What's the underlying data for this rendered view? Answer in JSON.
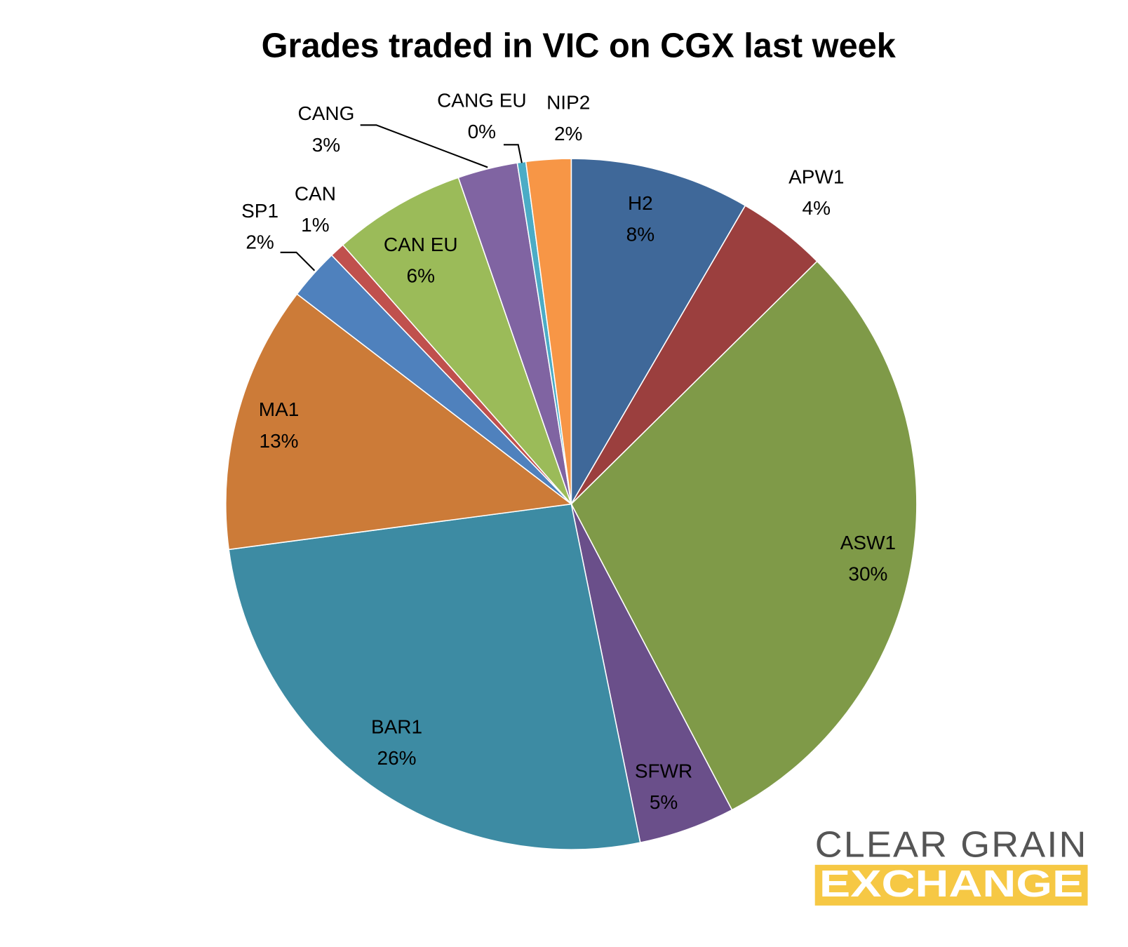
{
  "chart_data": {
    "type": "pie",
    "title": "Grades traded in VIC on CGX last week",
    "categories": [
      "H2",
      "APW1",
      "ASW1",
      "SFWR",
      "BAR1",
      "MA1",
      "SP1",
      "CAN",
      "CAN EU",
      "CANG",
      "CANG EU",
      "NIP2"
    ],
    "values": [
      8.4,
      4.2,
      29.7,
      4.5,
      26.1,
      12.5,
      2.4,
      0.7,
      6.2,
      2.8,
      0.4,
      2.1
    ],
    "value_labels": [
      "8%",
      "4%",
      "30%",
      "5%",
      "26%",
      "13%",
      "2%",
      "1%",
      "6%",
      "3%",
      "0%",
      "2%"
    ],
    "colors": [
      "#3f6899",
      "#9b3f3e",
      "#7f9a48",
      "#6a4f8a",
      "#3d8ba3",
      "#cc7b38",
      "#4f81bd",
      "#c0504d",
      "#9bbb59",
      "#8064a2",
      "#4bacc6",
      "#f79646"
    ],
    "logo_text": [
      "CLEAR GRAIN",
      "EXCHANGE"
    ]
  }
}
